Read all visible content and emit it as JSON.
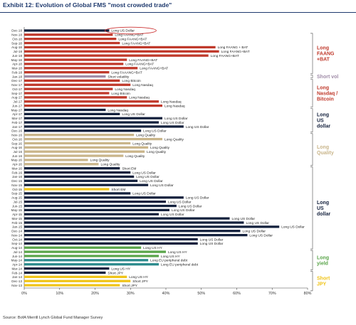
{
  "title": "Exhibit 12: Evolution of Global FMS \"most crowded trade\"",
  "source": "Source: BofA Merrill Lynch Global Fund Manager Survey",
  "colors": {
    "navy": "#14213d",
    "red": "#c0392b",
    "purple": "#a08ca8",
    "gold": "#c9b58a",
    "green": "#5aa54a",
    "yellow": "#f0c419",
    "teal": "#2b8a8c",
    "gray": "#888888",
    "circle": "#cc3333"
  },
  "chart_data": {
    "type": "bar",
    "orientation": "horizontal",
    "title": "Exhibit 12: Evolution of Global FMS \"most crowded trade\"",
    "xlim": [
      0,
      80
    ],
    "xticks": [
      "0%",
      "10%",
      "20%",
      "30%",
      "40%",
      "50%",
      "60%",
      "70%",
      "80%"
    ],
    "grid": false,
    "bars": [
      {
        "date": "Dec-18",
        "value": 24,
        "label": "Long US Dollar",
        "color": "navy"
      },
      {
        "date": "Nov-18",
        "value": 25,
        "label": "Long FAANG+BAT",
        "color": "red"
      },
      {
        "date": "Oct-18",
        "value": 26,
        "label": "Long FAANG+BAT",
        "color": "red"
      },
      {
        "date": "Sep-18",
        "value": 27,
        "label": "Long FAANG+BAT",
        "color": "red"
      },
      {
        "date": "Aug-18",
        "value": 54,
        "label": "Long FAANG + BAT",
        "color": "red"
      },
      {
        "date": "Jul-18",
        "value": 55,
        "label": "Long FAANG+BAT",
        "color": "red"
      },
      {
        "date": "Jun-18",
        "value": 52,
        "label": "Long FAANG+BAT",
        "color": "red"
      },
      {
        "date": "May-18",
        "value": 29,
        "label": "Long FAANG+BAT",
        "color": "red"
      },
      {
        "date": "Apr-18",
        "value": 28,
        "label": "Long FAANG+BAT",
        "color": "red"
      },
      {
        "date": "Mar-18",
        "value": 32,
        "label": "Long FAANG+BAT",
        "color": "red"
      },
      {
        "date": "Feb-18",
        "value": 24,
        "label": "Long FAAANG+BAT",
        "color": "red"
      },
      {
        "date": "Jan-18",
        "value": 23,
        "label": "Short volatility",
        "color": "purple"
      },
      {
        "date": "Dec-17",
        "value": 27,
        "label": "Long Bitcoin",
        "color": "red"
      },
      {
        "date": "Nov-17",
        "value": 30,
        "label": "Long Nasdaq",
        "color": "red"
      },
      {
        "date": "Oct-17",
        "value": 25,
        "label": "Long Nasdaq",
        "color": "red"
      },
      {
        "date": "Sep-17",
        "value": 24,
        "label": "Long Bitcoin",
        "color": "red"
      },
      {
        "date": "Aug-17",
        "value": 29,
        "label": "Long Nasdaq",
        "color": "red"
      },
      {
        "date": "Jul-17",
        "value": 38,
        "label": "Long Nasdaq",
        "color": "red"
      },
      {
        "date": "Jun-17",
        "value": 39,
        "label": "Long Nasdaq",
        "color": "red"
      },
      {
        "date": "May-17",
        "value": 23,
        "label": "Long Nasdaq",
        "color": "navy"
      },
      {
        "date": "Apr-17",
        "value": 27,
        "label": "Long US Dollar",
        "color": "navy"
      },
      {
        "date": "Mar-17",
        "value": 39,
        "label": "Long US Dollar",
        "color": "navy"
      },
      {
        "date": "Feb-17",
        "value": 38,
        "label": "Long US Dollar",
        "color": "navy"
      },
      {
        "date": "Jan-17",
        "value": 45,
        "label": "Long US Dollar",
        "color": "navy"
      },
      {
        "date": "Dec-16",
        "value": 33,
        "label": "Long US Dollar",
        "color": "navy"
      },
      {
        "date": "Nov-16",
        "value": 31,
        "label": "Long Quality",
        "color": "gold"
      },
      {
        "date": "Oct-16",
        "value": 39,
        "label": "Long Quality",
        "color": "gold"
      },
      {
        "date": "Sep-16",
        "value": 30,
        "label": "Long Quality",
        "color": "gold"
      },
      {
        "date": "Aug-16",
        "value": 35,
        "label": "Long Quality",
        "color": "gold"
      },
      {
        "date": "Jul-16",
        "value": 34,
        "label": "Long Quality",
        "color": "gold"
      },
      {
        "date": "Jun-16",
        "value": 28,
        "label": "Long Quality",
        "color": "gold"
      },
      {
        "date": "May-16",
        "value": 18,
        "label": "Long Quality",
        "color": "gold"
      },
      {
        "date": "Apr-16",
        "value": 21,
        "label": "Long Quality",
        "color": "gold"
      },
      {
        "date": "Mar-16",
        "value": 27,
        "label": "Short EM",
        "color": "navy"
      },
      {
        "date": "Feb-16",
        "value": 30,
        "label": "Long US Dollar",
        "color": "navy"
      },
      {
        "date": "Jan-16",
        "value": 31,
        "label": "Long US Dollar",
        "color": "navy"
      },
      {
        "date": "Dec-15",
        "value": 32,
        "label": "Long US Dollar",
        "color": "navy"
      },
      {
        "date": "Nov-15",
        "value": 35,
        "label": "Long US Dollar",
        "color": "navy"
      },
      {
        "date": "Oct-15",
        "value": 24,
        "label": "Short EM",
        "color": "yellow"
      },
      {
        "date": "Sep-15",
        "value": 30,
        "label": "Long US Dollar",
        "color": "navy"
      },
      {
        "date": "Aug-15",
        "value": 45,
        "label": "Long US Dollar",
        "color": "navy"
      },
      {
        "date": "Jul-15",
        "value": 40,
        "label": "Long US Dollar",
        "color": "navy"
      },
      {
        "date": "Jun-15",
        "value": 43,
        "label": "Long US Dollar",
        "color": "navy"
      },
      {
        "date": "May-15",
        "value": 41,
        "label": "Long US Dollar",
        "color": "navy"
      },
      {
        "date": "Apr-15",
        "value": 38,
        "label": "Long US Dollar",
        "color": "navy"
      },
      {
        "date": "Mar-15",
        "value": 58,
        "label": "Long US Dollar",
        "color": "navy"
      },
      {
        "date": "Feb-15",
        "value": 62,
        "label": "Long US Dollar",
        "color": "navy"
      },
      {
        "date": "Jan-15",
        "value": 72,
        "label": "Long US Dollar",
        "color": "navy"
      },
      {
        "date": "Dec-14",
        "value": 61,
        "label": "Long US Dollar",
        "color": "navy"
      },
      {
        "date": "Nov-14",
        "value": 63,
        "label": "Long US Dollar",
        "color": "navy"
      },
      {
        "date": "Oct-14",
        "value": 49,
        "label": "Long US Dollar",
        "color": "navy"
      },
      {
        "date": "Sep-14",
        "value": 49,
        "label": "Long US Dollar",
        "color": "navy"
      },
      {
        "date": "Aug-14",
        "value": 33,
        "label": "Long US HY",
        "color": "green"
      },
      {
        "date": "Jul-14",
        "value": 40,
        "label": "Long US HY",
        "color": "green"
      },
      {
        "date": "Jun-14",
        "value": 38,
        "label": "Long US HY",
        "color": "green"
      },
      {
        "date": "May-14",
        "value": 35,
        "label": "Long EU peripheral debt",
        "color": "teal"
      },
      {
        "date": "Apr-14",
        "value": 38,
        "label": "Long EU peripheral debt",
        "color": "teal"
      },
      {
        "date": "Mar-14",
        "value": 24,
        "label": "Long US HY",
        "color": "navy"
      },
      {
        "date": "Feb-14",
        "value": 23,
        "label": "Short JPY",
        "color": "navy"
      },
      {
        "date": "Jan-14",
        "value": 29,
        "label": "Long US HY",
        "color": "yellow"
      },
      {
        "date": "Dec-13",
        "value": 30,
        "label": "Short JPY",
        "color": "yellow"
      },
      {
        "date": "Nov-13",
        "value": 27,
        "label": "Short JPY",
        "color": "yellow"
      }
    ],
    "groups": [
      {
        "label_lines": [
          "Long",
          "FAANG",
          "+BAT"
        ],
        "color": "red",
        "from_row": 1,
        "to_row": 10
      },
      {
        "label_lines": [
          "Short vol"
        ],
        "color": "purple",
        "from_row": 11,
        "to_row": 11
      },
      {
        "label_lines": [
          "Long",
          "Nasdaq /",
          "Bitcoin"
        ],
        "color": "red",
        "from_row": 12,
        "to_row": 18
      },
      {
        "label_lines": [
          "Long",
          "US",
          "dollar"
        ],
        "color": "navy",
        "from_row": 19,
        "to_row": 24
      },
      {
        "label_lines": [
          "Long",
          "Quality"
        ],
        "color": "gold",
        "from_row": 25,
        "to_row": 32
      },
      {
        "label_lines": [
          "Long",
          "US",
          "dollar"
        ],
        "color": "navy",
        "from_row": 33,
        "to_row": 52
      },
      {
        "label_lines": [
          "Long",
          "yield"
        ],
        "color": "green",
        "from_row": 53,
        "to_row": 57
      },
      {
        "label_lines": [
          "Short",
          "JPY"
        ],
        "color": "yellow",
        "from_row": 58,
        "to_row": 62
      }
    ]
  }
}
